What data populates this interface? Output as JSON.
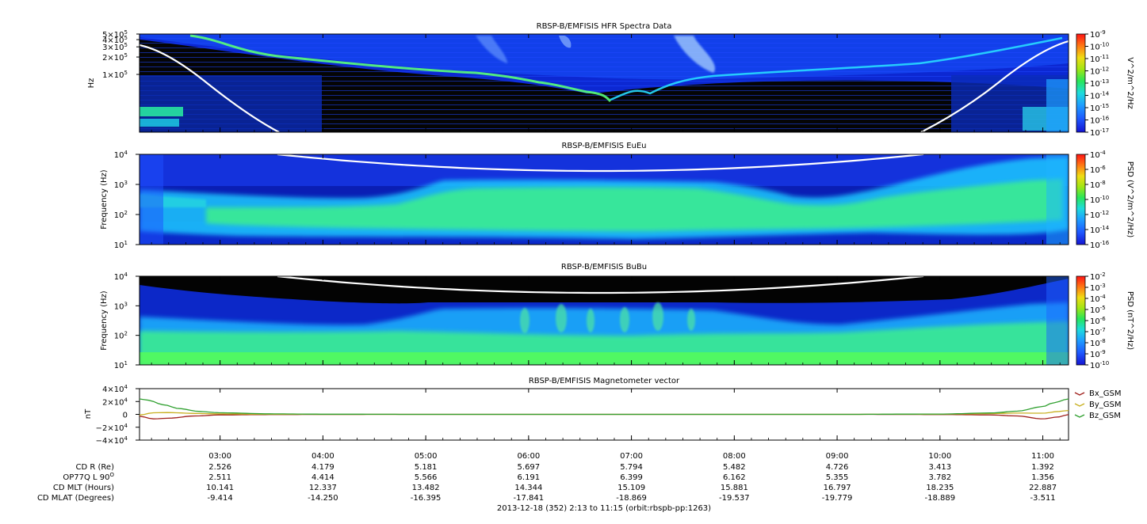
{
  "chart_data": [
    {
      "type": "heatmap",
      "title": "RBSP-B/EMFISIS  HFR Spectra Data",
      "ylabel": "Hz",
      "ytick_labels": [
        {
          "base": "5×10",
          "exp": "5",
          "value": 500000
        },
        {
          "base": "4×10",
          "exp": "5",
          "value": 400000
        },
        {
          "base": "3×10",
          "exp": "5",
          "value": 300000
        },
        {
          "base": "2×10",
          "exp": "5",
          "value": 200000
        },
        {
          "base": "1×10",
          "exp": "5",
          "value": 100000
        }
      ],
      "ylim": [
        10000,
        500000
      ],
      "y_scale": "log",
      "colorbar": {
        "label": "V^2/m^2/Hz",
        "range": [
          1e-17,
          1e-09
        ],
        "scale": "log",
        "tick_exponents": [
          "-9",
          "-10",
          "-11",
          "-12",
          "-13",
          "-14",
          "-15",
          "-16",
          "-17"
        ]
      }
    },
    {
      "type": "heatmap",
      "title": "RBSP-B/EMFISIS  EuEu",
      "ylabel": "Frequency (Hz)",
      "ytick_exponents": [
        "4",
        "3",
        "2",
        "1"
      ],
      "ylim": [
        10,
        10000
      ],
      "y_scale": "log",
      "colorbar": {
        "label": "PSD (V^2/m^2/Hz)",
        "range": [
          1e-16,
          0.0001
        ],
        "scale": "log",
        "tick_exponents": [
          "-4",
          "-6",
          "-8",
          "-10",
          "-12",
          "-14",
          "-16"
        ]
      }
    },
    {
      "type": "heatmap",
      "title": "RBSP-B/EMFISIS  BuBu",
      "ylabel": "Frequency (Hz)",
      "ytick_exponents": [
        "4",
        "3",
        "2",
        "1"
      ],
      "ylim": [
        10,
        10000
      ],
      "y_scale": "log",
      "colorbar": {
        "label": "PSD (nT^2/Hz)",
        "range": [
          1e-10,
          0.01
        ],
        "scale": "log",
        "tick_exponents": [
          "-2",
          "-3",
          "-4",
          "-5",
          "-6",
          "-7",
          "-8",
          "-9",
          "-10"
        ]
      }
    },
    {
      "type": "line",
      "title": "RBSP-B/EMFISIS  Magnetometer vector",
      "ylabel": "nT",
      "ylim": [
        -40000,
        40000
      ],
      "ytick_labels": [
        {
          "base": "4×10",
          "exp": "4",
          "value": 40000
        },
        {
          "base": "2×10",
          "exp": "4",
          "value": 20000
        },
        {
          "base": "0",
          "exp": "",
          "value": 0
        },
        {
          "base": "−2×10",
          "exp": "4",
          "value": -20000
        },
        {
          "base": "−4×10",
          "exp": "4",
          "value": -40000
        }
      ],
      "x_range_hours": [
        2.2167,
        11.25
      ],
      "series": [
        {
          "name": "Bx_GSM",
          "color": "#a0201c",
          "x": [
            2.2167,
            2.35,
            2.5,
            2.75,
            3.0,
            3.5,
            4.0,
            5.0,
            6.0,
            7.0,
            8.0,
            9.0,
            10.0,
            10.5,
            10.75,
            11.0,
            11.15,
            11.25
          ],
          "values": [
            -3000,
            -7000,
            -6000,
            -2500,
            -900,
            -300,
            -100,
            0,
            0,
            0,
            0,
            0,
            -200,
            -900,
            -2500,
            -7000,
            -4000,
            -200
          ]
        },
        {
          "name": "By_GSM",
          "color": "#c8b020",
          "x": [
            2.2167,
            2.35,
            2.5,
            2.75,
            3.0,
            3.5,
            4.0,
            5.0,
            6.0,
            7.0,
            8.0,
            9.0,
            10.0,
            10.5,
            10.75,
            11.0,
            11.15,
            11.25
          ],
          "values": [
            -1000,
            2500,
            2800,
            1500,
            700,
            200,
            50,
            0,
            0,
            0,
            0,
            0,
            300,
            1200,
            2000,
            1800,
            4500,
            6000
          ]
        },
        {
          "name": "Bz_GSM",
          "color": "#30a030",
          "x": [
            2.2167,
            2.3,
            2.45,
            2.6,
            2.8,
            3.0,
            3.5,
            4.0,
            5.0,
            6.0,
            7.0,
            8.0,
            9.0,
            10.0,
            10.5,
            10.75,
            11.0,
            11.1,
            11.25
          ],
          "values": [
            24000,
            22000,
            15000,
            9000,
            4500,
            2500,
            800,
            300,
            0,
            0,
            0,
            0,
            0,
            500,
            2200,
            5000,
            12000,
            18000,
            24000
          ]
        }
      ]
    }
  ],
  "time_axis": {
    "range_hours": [
      2.2167,
      11.25
    ],
    "ticks": [
      {
        "label": "03:00",
        "hours": 3
      },
      {
        "label": "04:00",
        "hours": 4
      },
      {
        "label": "05:00",
        "hours": 5
      },
      {
        "label": "06:00",
        "hours": 6
      },
      {
        "label": "07:00",
        "hours": 7
      },
      {
        "label": "08:00",
        "hours": 8
      },
      {
        "label": "09:00",
        "hours": 9
      },
      {
        "label": "10:00",
        "hours": 10
      },
      {
        "label": "11:00",
        "hours": 11
      }
    ]
  },
  "ephemeris": [
    {
      "label": "CD R (Re)",
      "values": [
        "2.526",
        "4.179",
        "5.181",
        "5.697",
        "5.794",
        "5.482",
        "4.726",
        "3.413",
        "1.392"
      ]
    },
    {
      "label": "OP77Q L 90",
      "label_sup": "O",
      "values": [
        "2.511",
        "4.414",
        "5.566",
        "6.191",
        "6.399",
        "6.162",
        "5.355",
        "3.782",
        "1.356"
      ]
    },
    {
      "label": "CD MLT (Hours)",
      "values": [
        "10.141",
        "12.337",
        "13.482",
        "14.344",
        "15.109",
        "15.881",
        "16.797",
        "18.235",
        "22.887"
      ]
    },
    {
      "label": "CD MLAT (Degrees)",
      "values": [
        "-9.414",
        "-14.250",
        "-16.395",
        "-17.841",
        "-18.869",
        "-19.537",
        "-19.779",
        "-18.889",
        "-3.511"
      ]
    }
  ],
  "footer": "2013-12-18 (352) 2:13 to 11:15 (orbit:rbspb-pp:1263)"
}
